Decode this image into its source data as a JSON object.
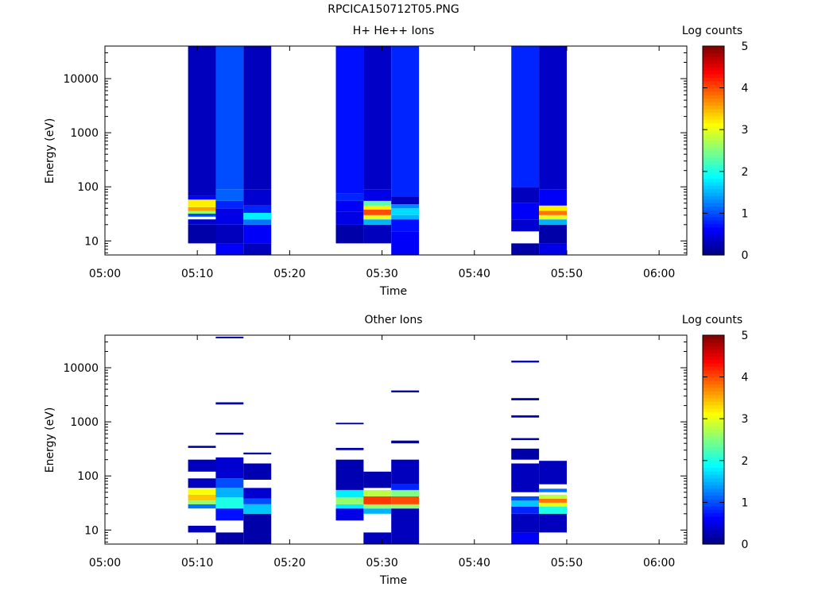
{
  "title": "RPCICA150712T05.PNG",
  "chart_data": [
    {
      "type": "heatmap",
      "title": "H+ He++ Ions",
      "xlabel": "Time",
      "ylabel": "Energy (eV)",
      "x_ticks": [
        "05:00",
        "05:10",
        "05:20",
        "05:30",
        "05:40",
        "05:50",
        "06:00"
      ],
      "xlim": [
        "05:00",
        "06:03"
      ],
      "y_scale": "log",
      "y_ticks": [
        "10",
        "100",
        "1000",
        "10000"
      ],
      "ylim": [
        5.5,
        40000
      ],
      "colorbar": {
        "label": "Log counts",
        "ticks": [
          "0",
          "1",
          "2",
          "3",
          "4",
          "5"
        ],
        "range": [
          0,
          5
        ]
      },
      "columns": [
        {
          "start": "05:09",
          "end": "05:12",
          "cells": [
            {
              "e_lo": 9,
              "e_hi": 20,
              "value": 0.2
            },
            {
              "e_lo": 20,
              "e_hi": 25,
              "value": 0.4
            },
            {
              "e_lo": 28,
              "e_hi": 32,
              "value": 1.0
            },
            {
              "e_lo": 32,
              "e_hi": 36,
              "value": 2.6
            },
            {
              "e_lo": 36,
              "e_hi": 42,
              "value": 3.6
            },
            {
              "e_lo": 42,
              "e_hi": 58,
              "value": 3.2
            },
            {
              "e_lo": 58,
              "e_hi": 68,
              "value": 0.6
            },
            {
              "e_lo": 68,
              "e_hi": 85,
              "value": 0.3
            },
            {
              "e_lo": 85,
              "e_hi": 40000,
              "value": 0.3
            }
          ]
        },
        {
          "start": "05:12",
          "end": "05:15",
          "cells": [
            {
              "e_lo": 5.5,
              "e_hi": 9,
              "value": 0.6
            },
            {
              "e_lo": 9,
              "e_hi": 20,
              "value": 0.3
            },
            {
              "e_lo": 20,
              "e_hi": 40,
              "value": 0.5
            },
            {
              "e_lo": 40,
              "e_hi": 55,
              "value": 0.8
            },
            {
              "e_lo": 55,
              "e_hi": 90,
              "value": 1.1
            },
            {
              "e_lo": 90,
              "e_hi": 40000,
              "value": 1.0
            }
          ]
        },
        {
          "start": "05:15",
          "end": "05:18",
          "cells": [
            {
              "e_lo": 5.5,
              "e_hi": 9,
              "value": 0.3
            },
            {
              "e_lo": 9,
              "e_hi": 20,
              "value": 0.6
            },
            {
              "e_lo": 20,
              "e_hi": 25,
              "value": 1.2
            },
            {
              "e_lo": 25,
              "e_hi": 33,
              "value": 1.8
            },
            {
              "e_lo": 33,
              "e_hi": 45,
              "value": 0.8
            },
            {
              "e_lo": 45,
              "e_hi": 90,
              "value": 0.4
            },
            {
              "e_lo": 90,
              "e_hi": 40000,
              "value": 0.3
            }
          ]
        },
        {
          "start": "05:25",
          "end": "05:28",
          "cells": [
            {
              "e_lo": 9,
              "e_hi": 20,
              "value": 0.2
            },
            {
              "e_lo": 20,
              "e_hi": 35,
              "value": 0.5
            },
            {
              "e_lo": 35,
              "e_hi": 55,
              "value": 0.6
            },
            {
              "e_lo": 55,
              "e_hi": 75,
              "value": 0.8
            },
            {
              "e_lo": 75,
              "e_hi": 40000,
              "value": 0.7
            }
          ]
        },
        {
          "start": "05:28",
          "end": "05:31",
          "cells": [
            {
              "e_lo": 9,
              "e_hi": 20,
              "value": 0.3
            },
            {
              "e_lo": 20,
              "e_hi": 25,
              "value": 1.5
            },
            {
              "e_lo": 25,
              "e_hi": 30,
              "value": 3.0
            },
            {
              "e_lo": 30,
              "e_hi": 38,
              "value": 4.0
            },
            {
              "e_lo": 38,
              "e_hi": 45,
              "value": 3.2
            },
            {
              "e_lo": 45,
              "e_hi": 55,
              "value": 2.3
            },
            {
              "e_lo": 55,
              "e_hi": 90,
              "value": 0.5
            },
            {
              "e_lo": 90,
              "e_hi": 40000,
              "value": 0.35
            }
          ]
        },
        {
          "start": "05:31",
          "end": "05:34",
          "cells": [
            {
              "e_lo": 5.5,
              "e_hi": 15,
              "value": 0.6
            },
            {
              "e_lo": 15,
              "e_hi": 25,
              "value": 0.7
            },
            {
              "e_lo": 25,
              "e_hi": 30,
              "value": 1.5
            },
            {
              "e_lo": 30,
              "e_hi": 40,
              "value": 1.7
            },
            {
              "e_lo": 40,
              "e_hi": 48,
              "value": 1.3
            },
            {
              "e_lo": 48,
              "e_hi": 65,
              "value": 0.3
            },
            {
              "e_lo": 65,
              "e_hi": 40000,
              "value": 0.8
            }
          ]
        },
        {
          "start": "05:44",
          "end": "05:47",
          "cells": [
            {
              "e_lo": 5.5,
              "e_hi": 9,
              "value": 0.2
            },
            {
              "e_lo": 15,
              "e_hi": 25,
              "value": 0.4
            },
            {
              "e_lo": 25,
              "e_hi": 50,
              "value": 0.6
            },
            {
              "e_lo": 50,
              "e_hi": 100,
              "value": 0.3
            },
            {
              "e_lo": 100,
              "e_hi": 40000,
              "value": 0.8
            }
          ]
        },
        {
          "start": "05:47",
          "end": "05:50",
          "cells": [
            {
              "e_lo": 5.5,
              "e_hi": 9,
              "value": 0.5
            },
            {
              "e_lo": 9,
              "e_hi": 20,
              "value": 0.2
            },
            {
              "e_lo": 20,
              "e_hi": 25,
              "value": 1.5
            },
            {
              "e_lo": 25,
              "e_hi": 30,
              "value": 3.0
            },
            {
              "e_lo": 30,
              "e_hi": 36,
              "value": 3.8
            },
            {
              "e_lo": 36,
              "e_hi": 45,
              "value": 3.2
            },
            {
              "e_lo": 45,
              "e_hi": 90,
              "value": 0.6
            },
            {
              "e_lo": 90,
              "e_hi": 40000,
              "value": 0.35
            }
          ]
        }
      ]
    },
    {
      "type": "heatmap",
      "title": "Other Ions",
      "xlabel": "Time",
      "ylabel": "Energy (eV)",
      "x_ticks": [
        "05:00",
        "05:10",
        "05:20",
        "05:30",
        "05:40",
        "05:50",
        "06:00"
      ],
      "xlim": [
        "05:00",
        "06:03"
      ],
      "y_scale": "log",
      "y_ticks": [
        "10",
        "100",
        "1000",
        "10000"
      ],
      "ylim": [
        5.5,
        40000
      ],
      "colorbar": {
        "label": "Log counts",
        "ticks": [
          "0",
          "1",
          "2",
          "3",
          "4",
          "5"
        ],
        "range": [
          0,
          5
        ]
      },
      "columns": [
        {
          "start": "05:09",
          "end": "05:12",
          "cells": [
            {
              "e_lo": 9,
              "e_hi": 12,
              "value": 0.3
            },
            {
              "e_lo": 25,
              "e_hi": 30,
              "value": 1.2
            },
            {
              "e_lo": 30,
              "e_hi": 35,
              "value": 2.6
            },
            {
              "e_lo": 35,
              "e_hi": 45,
              "value": 3.4
            },
            {
              "e_lo": 45,
              "e_hi": 58,
              "value": 3.1
            },
            {
              "e_lo": 60,
              "e_hi": 90,
              "value": 0.3
            },
            {
              "e_lo": 120,
              "e_hi": 200,
              "value": 0.3
            },
            {
              "e_lo": 330,
              "e_hi": 360,
              "value": 0.2
            }
          ]
        },
        {
          "start": "05:12",
          "end": "05:15",
          "cells": [
            {
              "e_lo": 5.5,
              "e_hi": 9,
              "value": 0.2
            },
            {
              "e_lo": 15,
              "e_hi": 25,
              "value": 0.7
            },
            {
              "e_lo": 25,
              "e_hi": 40,
              "value": 2.0
            },
            {
              "e_lo": 40,
              "e_hi": 60,
              "value": 1.5
            },
            {
              "e_lo": 60,
              "e_hi": 90,
              "value": 1.0
            },
            {
              "e_lo": 90,
              "e_hi": 220,
              "value": 0.4
            },
            {
              "e_lo": 580,
              "e_hi": 630,
              "value": 0.2
            },
            {
              "e_lo": 2100,
              "e_hi": 2300,
              "value": 0.2
            },
            {
              "e_lo": 35000,
              "e_hi": 37500,
              "value": 0.2
            }
          ]
        },
        {
          "start": "05:15",
          "end": "05:18",
          "cells": [
            {
              "e_lo": 5.5,
              "e_hi": 20,
              "value": 0.2
            },
            {
              "e_lo": 20,
              "e_hi": 30,
              "value": 1.6
            },
            {
              "e_lo": 30,
              "e_hi": 38,
              "value": 1.0
            },
            {
              "e_lo": 38,
              "e_hi": 60,
              "value": 0.4
            },
            {
              "e_lo": 85,
              "e_hi": 170,
              "value": 0.25
            },
            {
              "e_lo": 250,
              "e_hi": 270,
              "value": 0.2
            }
          ]
        },
        {
          "start": "05:25",
          "end": "05:28",
          "cells": [
            {
              "e_lo": 15,
              "e_hi": 25,
              "value": 0.5
            },
            {
              "e_lo": 25,
              "e_hi": 30,
              "value": 1.8
            },
            {
              "e_lo": 30,
              "e_hi": 40,
              "value": 2.6
            },
            {
              "e_lo": 40,
              "e_hi": 55,
              "value": 1.8
            },
            {
              "e_lo": 55,
              "e_hi": 200,
              "value": 0.25
            },
            {
              "e_lo": 300,
              "e_hi": 330,
              "value": 0.2
            },
            {
              "e_lo": 900,
              "e_hi": 960,
              "value": 0.2
            }
          ]
        },
        {
          "start": "05:28",
          "end": "05:31",
          "cells": [
            {
              "e_lo": 5.5,
              "e_hi": 9,
              "value": 0.3
            },
            {
              "e_lo": 20,
              "e_hi": 25,
              "value": 1.5
            },
            {
              "e_lo": 25,
              "e_hi": 30,
              "value": 2.6
            },
            {
              "e_lo": 30,
              "e_hi": 42,
              "value": 4.1
            },
            {
              "e_lo": 42,
              "e_hi": 55,
              "value": 2.8
            },
            {
              "e_lo": 60,
              "e_hi": 120,
              "value": 0.25
            }
          ]
        },
        {
          "start": "05:31",
          "end": "05:34",
          "cells": [
            {
              "e_lo": 5.5,
              "e_hi": 25,
              "value": 0.3
            },
            {
              "e_lo": 25,
              "e_hi": 30,
              "value": 2.6
            },
            {
              "e_lo": 30,
              "e_hi": 42,
              "value": 4.0
            },
            {
              "e_lo": 42,
              "e_hi": 55,
              "value": 2.5
            },
            {
              "e_lo": 55,
              "e_hi": 70,
              "value": 0.8
            },
            {
              "e_lo": 70,
              "e_hi": 200,
              "value": 0.3
            },
            {
              "e_lo": 400,
              "e_hi": 450,
              "value": 0.2
            },
            {
              "e_lo": 3500,
              "e_hi": 3800,
              "value": 0.2
            }
          ]
        },
        {
          "start": "05:44",
          "end": "05:47",
          "cells": [
            {
              "e_lo": 5.5,
              "e_hi": 9,
              "value": 0.6
            },
            {
              "e_lo": 9,
              "e_hi": 20,
              "value": 0.3
            },
            {
              "e_lo": 20,
              "e_hi": 27,
              "value": 0.8
            },
            {
              "e_lo": 27,
              "e_hi": 35,
              "value": 1.6
            },
            {
              "e_lo": 35,
              "e_hi": 42,
              "value": 1.0
            },
            {
              "e_lo": 50,
              "e_hi": 170,
              "value": 0.3
            },
            {
              "e_lo": 200,
              "e_hi": 320,
              "value": 0.2
            },
            {
              "e_lo": 460,
              "e_hi": 500,
              "value": 0.2
            },
            {
              "e_lo": 1200,
              "e_hi": 1320,
              "value": 0.2
            },
            {
              "e_lo": 2500,
              "e_hi": 2750,
              "value": 0.2
            },
            {
              "e_lo": 12500,
              "e_hi": 13500,
              "value": 0.2
            }
          ]
        },
        {
          "start": "05:47",
          "end": "05:50",
          "cells": [
            {
              "e_lo": 9,
              "e_hi": 20,
              "value": 0.3
            },
            {
              "e_lo": 20,
              "e_hi": 27,
              "value": 2.0
            },
            {
              "e_lo": 27,
              "e_hi": 32,
              "value": 3.0
            },
            {
              "e_lo": 32,
              "e_hi": 38,
              "value": 3.8
            },
            {
              "e_lo": 38,
              "e_hi": 45,
              "value": 2.8
            },
            {
              "e_lo": 50,
              "e_hi": 58,
              "value": 1.2
            },
            {
              "e_lo": 70,
              "e_hi": 190,
              "value": 0.3
            }
          ]
        }
      ]
    }
  ]
}
